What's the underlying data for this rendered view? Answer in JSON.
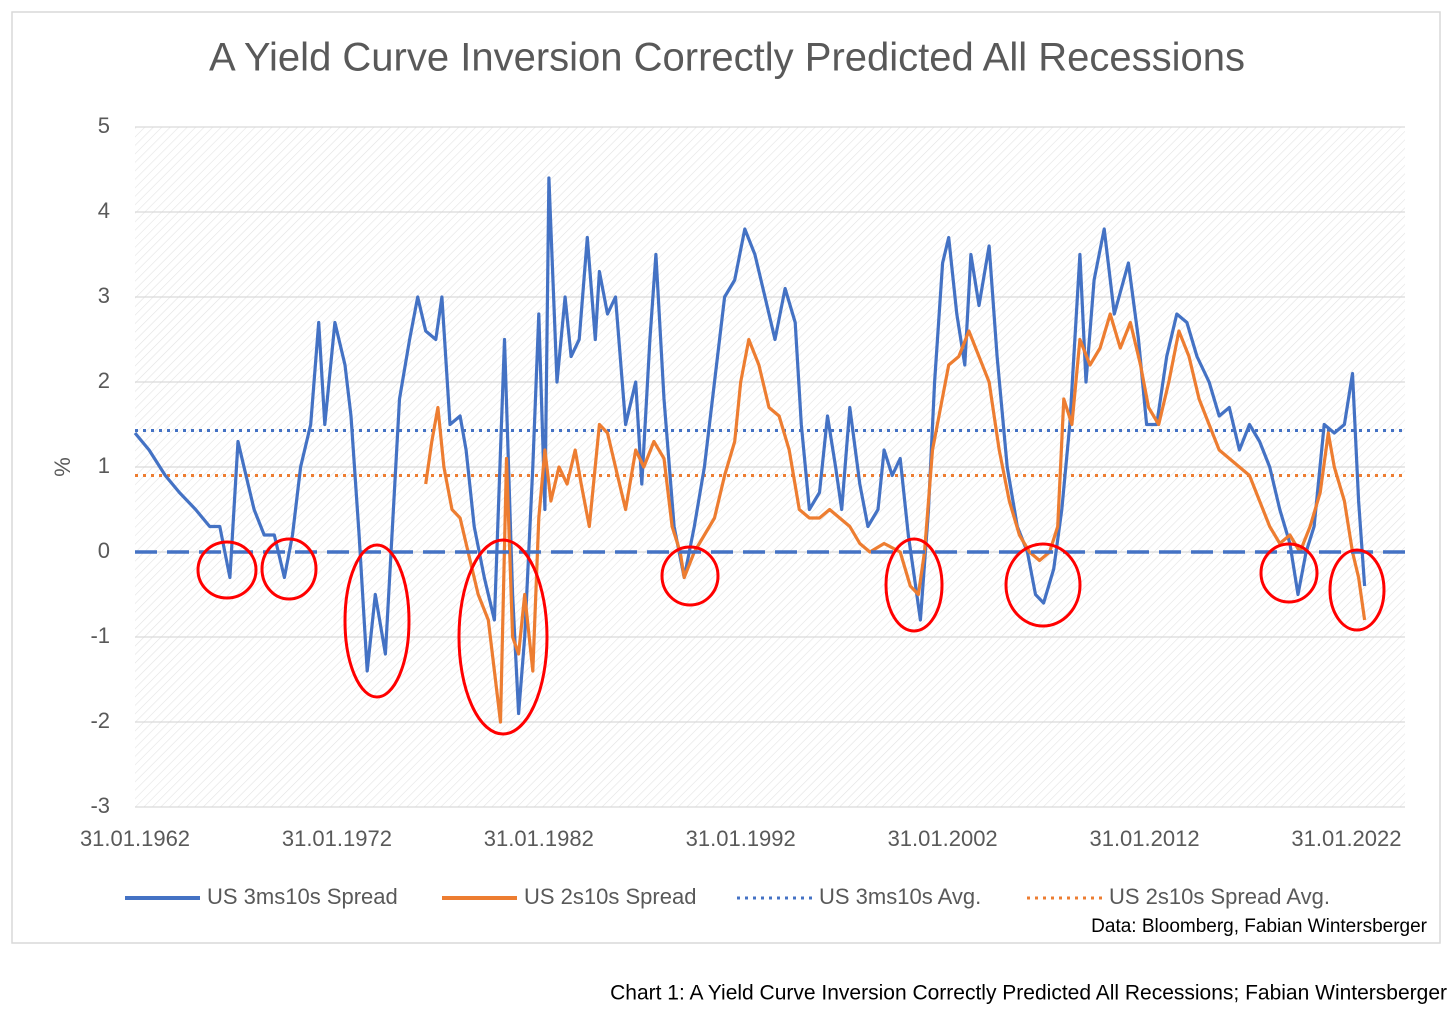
{
  "chart_data": {
    "type": "line",
    "title": "A Yield Curve Inversion Correctly Predicted All Recessions",
    "ylabel": "%",
    "source": "Data: Bloomberg, Fabian Wintersberger",
    "caption": "Chart 1: A Yield Curve Inversion Correctly Predicted All Recessions; Fabian Wintersberger",
    "xlim": [
      1962,
      2024.9
    ],
    "xticks": [
      {
        "value": 1962,
        "label": "31.01.1962"
      },
      {
        "value": 1972,
        "label": "31.01.1972"
      },
      {
        "value": 1982,
        "label": "31.01.1982"
      },
      {
        "value": 1992,
        "label": "31.01.1992"
      },
      {
        "value": 2002,
        "label": "31.01.2002"
      },
      {
        "value": 2012,
        "label": "31.01.2012"
      },
      {
        "value": 2022,
        "label": "31.01.2022"
      }
    ],
    "ylim": [
      -3,
      5
    ],
    "yticks": [
      -3,
      -2,
      -1,
      0,
      1,
      2,
      3,
      4,
      5
    ],
    "grid": true,
    "series": [
      {
        "name": "US 3ms10s Spread",
        "color": "#4472c4",
        "x": [
          1962.0,
          1962.7,
          1963.5,
          1964.2,
          1965.0,
          1965.7,
          1966.2,
          1966.7,
          1967.1,
          1967.4,
          1967.9,
          1968.4,
          1968.9,
          1969.4,
          1969.8,
          1970.2,
          1970.7,
          1971.1,
          1971.4,
          1971.9,
          1972.4,
          1972.7,
          1973.1,
          1973.5,
          1973.9,
          1974.4,
          1974.8,
          1975.1,
          1975.6,
          1976.0,
          1976.4,
          1976.9,
          1977.2,
          1977.6,
          1978.1,
          1978.4,
          1978.8,
          1979.3,
          1979.8,
          1980.3,
          1980.7,
          1981.0,
          1981.3,
          1981.7,
          1982.0,
          1982.3,
          1982.5,
          1982.9,
          1983.3,
          1983.6,
          1984.0,
          1984.4,
          1984.8,
          1985.0,
          1985.4,
          1985.8,
          1986.3,
          1986.8,
          1987.1,
          1987.5,
          1987.8,
          1988.2,
          1988.7,
          1989.2,
          1989.7,
          1990.2,
          1990.7,
          1991.2,
          1991.7,
          1992.2,
          1992.7,
          1993.2,
          1993.7,
          1994.2,
          1994.7,
          1995.0,
          1995.4,
          1995.9,
          1996.3,
          1996.7,
          1997.0,
          1997.4,
          1997.9,
          1998.3,
          1998.8,
          1999.1,
          1999.5,
          1999.9,
          2000.3,
          2000.6,
          2000.9,
          2001.3,
          2001.6,
          2002.0,
          2002.3,
          2002.7,
          2003.1,
          2003.4,
          2003.8,
          2004.3,
          2004.7,
          2005.2,
          2005.7,
          2006.2,
          2006.6,
          2007.0,
          2007.5,
          2007.9,
          2008.3,
          2008.8,
          2009.1,
          2009.5,
          2010.0,
          2010.5,
          2011.2,
          2011.7,
          2012.1,
          2012.6,
          2013.1,
          2013.6,
          2014.1,
          2014.6,
          2015.2,
          2015.7,
          2016.2,
          2016.7,
          2017.2,
          2017.7,
          2018.2,
          2018.7,
          2019.2,
          2019.6,
          2020.0,
          2020.4,
          2020.9,
          2021.4,
          2021.9,
          2022.3,
          2022.6,
          2022.9
        ],
        "values": [
          1.4,
          1.2,
          0.9,
          0.7,
          0.5,
          0.3,
          0.3,
          -0.3,
          1.3,
          1.0,
          0.5,
          0.2,
          0.2,
          -0.3,
          0.2,
          1.0,
          1.5,
          2.7,
          1.5,
          2.7,
          2.2,
          1.6,
          0.2,
          -1.4,
          -0.5,
          -1.2,
          0.5,
          1.8,
          2.5,
          3.0,
          2.6,
          2.5,
          3.0,
          1.5,
          1.6,
          1.2,
          0.3,
          -0.3,
          -0.8,
          2.5,
          -0.5,
          -1.9,
          -1.0,
          1.0,
          2.8,
          0.5,
          4.4,
          2.0,
          3.0,
          2.3,
          2.5,
          3.7,
          2.5,
          3.3,
          2.8,
          3.0,
          1.5,
          2.0,
          0.8,
          2.5,
          3.5,
          1.8,
          0.3,
          -0.3,
          0.3,
          1.0,
          2.0,
          3.0,
          3.2,
          3.8,
          3.5,
          3.0,
          2.5,
          3.1,
          2.7,
          1.5,
          0.5,
          0.7,
          1.6,
          1.0,
          0.5,
          1.7,
          0.8,
          0.3,
          0.5,
          1.2,
          0.9,
          1.1,
          0.2,
          -0.3,
          -0.8,
          0.5,
          2.0,
          3.4,
          3.7,
          2.8,
          2.2,
          3.5,
          2.9,
          3.6,
          2.3,
          1.0,
          0.3,
          0.0,
          -0.5,
          -0.6,
          -0.2,
          0.5,
          1.5,
          3.5,
          2.0,
          3.2,
          3.8,
          2.8,
          3.4,
          2.5,
          1.5,
          1.5,
          2.3,
          2.8,
          2.7,
          2.3,
          2.0,
          1.6,
          1.7,
          1.2,
          1.5,
          1.3,
          1.0,
          0.5,
          0.1,
          -0.5,
          0.0,
          0.3,
          1.5,
          1.4,
          1.5,
          2.1,
          0.6,
          -0.4
        ]
      },
      {
        "name": "US 2s10s Spread",
        "color": "#ed7d31",
        "x": [
          1976.4,
          1976.7,
          1977.0,
          1977.3,
          1977.7,
          1978.1,
          1978.5,
          1979.0,
          1979.5,
          1979.8,
          1980.1,
          1980.4,
          1980.7,
          1981.0,
          1981.3,
          1981.7,
          1982.0,
          1982.3,
          1982.6,
          1983.0,
          1983.4,
          1983.8,
          1984.1,
          1984.5,
          1985.0,
          1985.4,
          1985.8,
          1986.3,
          1986.8,
          1987.2,
          1987.7,
          1988.2,
          1988.6,
          1989.0,
          1989.2,
          1989.7,
          1990.2,
          1990.7,
          1991.2,
          1991.7,
          1992.0,
          1992.4,
          1992.9,
          1993.4,
          1993.9,
          1994.4,
          1994.9,
          1995.4,
          1995.9,
          1996.4,
          1996.9,
          1997.4,
          1997.9,
          1998.4,
          1999.1,
          1999.9,
          2000.4,
          2000.8,
          2001.1,
          2001.5,
          2001.9,
          2002.3,
          2002.8,
          2003.3,
          2003.8,
          2004.3,
          2004.8,
          2005.3,
          2005.8,
          2006.3,
          2006.8,
          2007.3,
          2007.7,
          2008.0,
          2008.4,
          2008.8,
          2009.3,
          2009.8,
          2010.3,
          2010.8,
          2011.3,
          2011.8,
          2012.2,
          2012.7,
          2013.2,
          2013.7,
          2014.2,
          2014.7,
          2015.2,
          2015.7,
          2016.2,
          2016.7,
          2017.2,
          2017.7,
          2018.2,
          2018.7,
          2019.2,
          2019.7,
          2020.2,
          2020.7,
          2021.1,
          2021.4,
          2021.9,
          2022.3,
          2022.6,
          2022.9
        ],
        "values": [
          0.8,
          1.3,
          1.7,
          1.0,
          0.5,
          0.4,
          0.0,
          -0.5,
          -0.8,
          -1.4,
          -2.0,
          1.1,
          -1.0,
          -1.2,
          -0.5,
          -1.4,
          0.4,
          1.2,
          0.6,
          1.0,
          0.8,
          1.2,
          0.8,
          0.3,
          1.5,
          1.4,
          1.0,
          0.5,
          1.2,
          1.0,
          1.3,
          1.1,
          0.3,
          0.0,
          -0.3,
          0.0,
          0.2,
          0.4,
          0.9,
          1.3,
          2.0,
          2.5,
          2.2,
          1.7,
          1.6,
          1.2,
          0.5,
          0.4,
          0.4,
          0.5,
          0.4,
          0.3,
          0.1,
          0.0,
          0.1,
          0.0,
          -0.4,
          -0.5,
          0.0,
          1.2,
          1.7,
          2.2,
          2.3,
          2.6,
          2.3,
          2.0,
          1.2,
          0.6,
          0.2,
          0.0,
          -0.1,
          0.0,
          0.3,
          1.8,
          1.5,
          2.5,
          2.2,
          2.4,
          2.8,
          2.4,
          2.7,
          2.2,
          1.7,
          1.5,
          2.0,
          2.6,
          2.3,
          1.8,
          1.5,
          1.2,
          1.1,
          1.0,
          0.9,
          0.6,
          0.3,
          0.1,
          0.2,
          0.0,
          0.3,
          0.7,
          1.4,
          1.0,
          0.6,
          0.0,
          -0.3,
          -0.8
        ]
      },
      {
        "name": "US 3ms10s Avg.",
        "color": "#4472c4",
        "dash": "dotted",
        "value": 1.43
      },
      {
        "name": "US 2s10s Spread Avg.",
        "color": "#ed7d31",
        "dash": "dotted",
        "value": 0.9
      }
    ]
  }
}
